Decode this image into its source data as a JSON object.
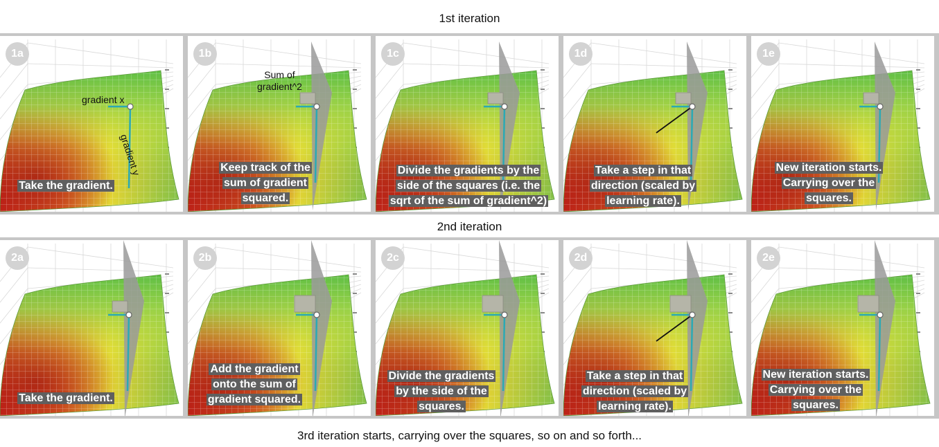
{
  "headings": {
    "iter1": "1st iteration",
    "iter2": "2nd iteration",
    "footer": "3rd iteration starts, carrying over the squares, so on and so forth..."
  },
  "colors": {
    "caption_bg": "#5f5f5f",
    "badge_bg": "#d3d3d3",
    "gradient_line": "#2ba9b5",
    "plane": "#9a9a9a",
    "square": "#b5b5a8"
  },
  "annotations": {
    "gradient_x": "gradient x",
    "gradient_y": "gradient y",
    "sum_of": "Sum of",
    "gradient_sq": "gradient^2"
  },
  "row1": [
    {
      "label": "1a",
      "lines": [
        "Take the gradient."
      ]
    },
    {
      "label": "1b",
      "lines": [
        "Keep track of the",
        "sum of gradient",
        "squared."
      ]
    },
    {
      "label": "1c",
      "lines": [
        "Divide the gradients by the",
        "side of the squares (i.e. the",
        "sqrt of the sum of gradient^2)"
      ]
    },
    {
      "label": "1d",
      "lines": [
        "Take a step in that",
        "direction (scaled by",
        "learning rate)."
      ]
    },
    {
      "label": "1e",
      "lines": [
        "New iteration starts.",
        "Carrying over the",
        "squares."
      ]
    }
  ],
  "row2": [
    {
      "label": "2a",
      "lines": [
        "Take the gradient."
      ]
    },
    {
      "label": "2b",
      "lines": [
        "Add the gradient",
        "onto the sum of",
        "gradient squared."
      ]
    },
    {
      "label": "2c",
      "lines": [
        "Divide the gradients",
        "by the side of the",
        "squares."
      ]
    },
    {
      "label": "2d",
      "lines": [
        "Take a step in that",
        "direction (scaled by",
        "learning rate)."
      ]
    },
    {
      "label": "2e",
      "lines": [
        "New iteration starts.",
        "Carrying over the",
        "squares."
      ]
    }
  ]
}
